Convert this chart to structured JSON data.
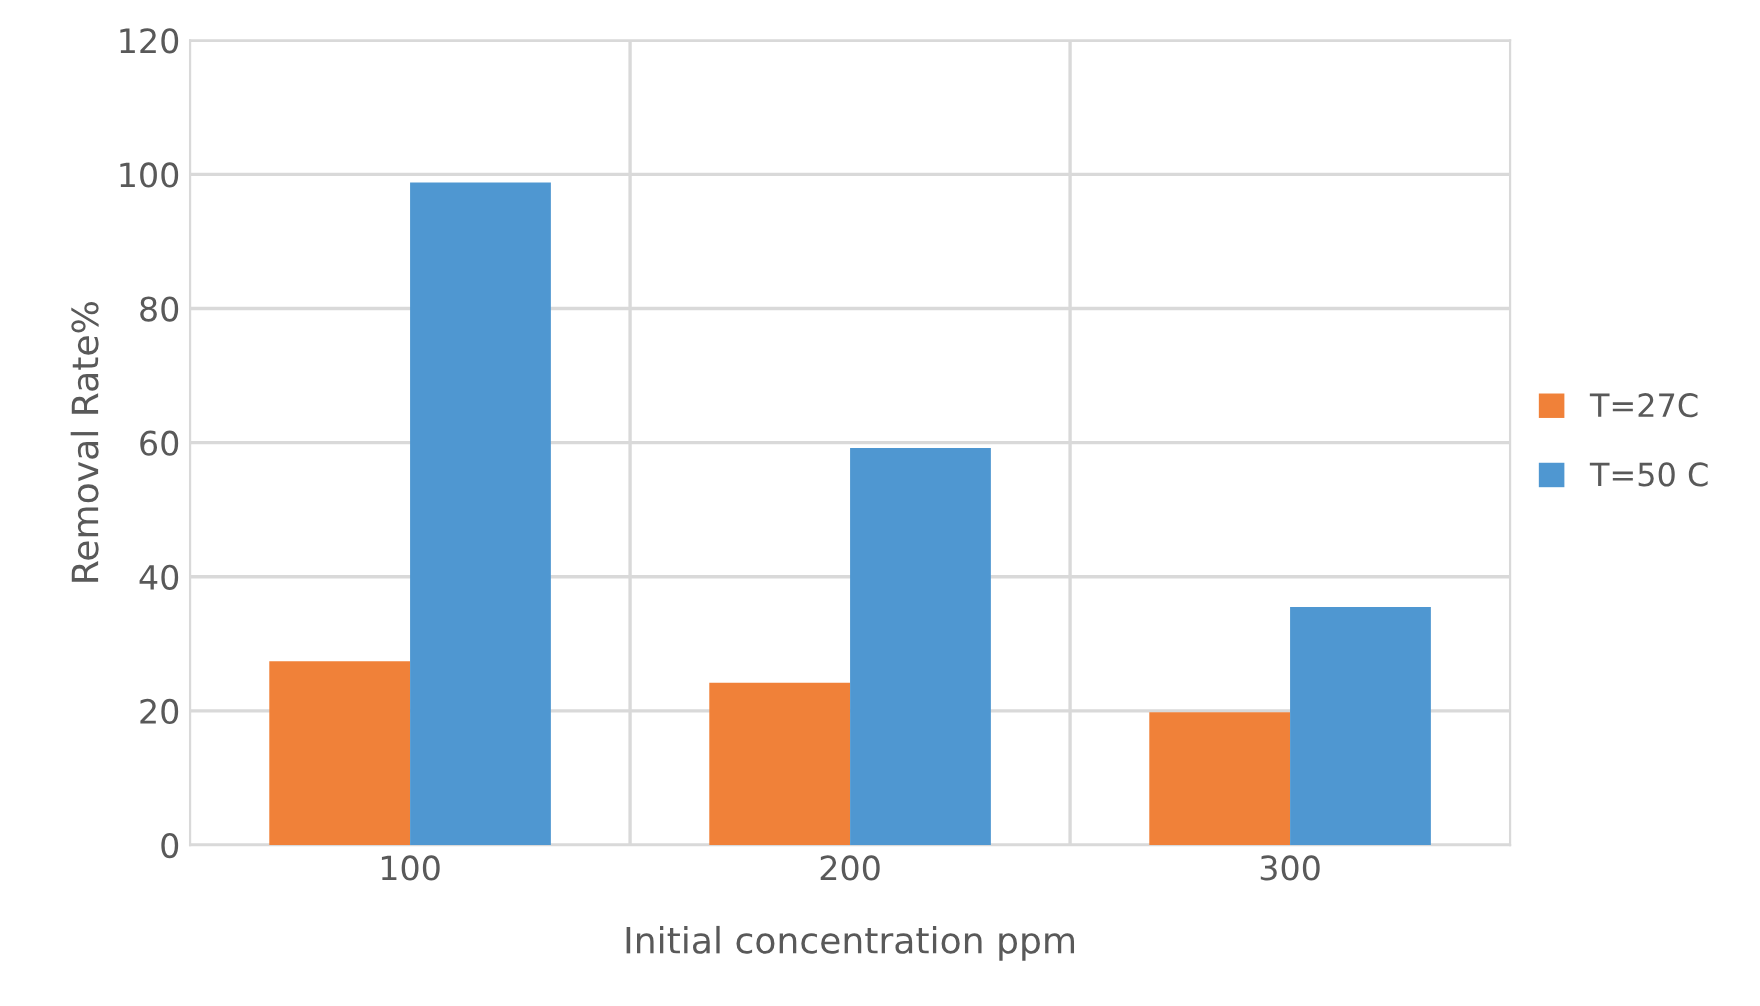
{
  "chart_data": {
    "type": "bar",
    "xlabel": "Initial concentration ppm",
    "ylabel": "Removal Rate%",
    "categories": [
      "100",
      "200",
      "300"
    ],
    "series": [
      {
        "name": "T=27C",
        "color": "#f08139",
        "values": [
          27.4,
          24.2,
          19.8
        ]
      },
      {
        "name": "T=50 C",
        "color": "#4f97d1",
        "values": [
          98.8,
          59.2,
          35.5
        ]
      }
    ],
    "ylim": [
      0,
      120
    ],
    "yticks": [
      0,
      20,
      40,
      60,
      80,
      100,
      120
    ],
    "grid": true,
    "legend": "right"
  }
}
